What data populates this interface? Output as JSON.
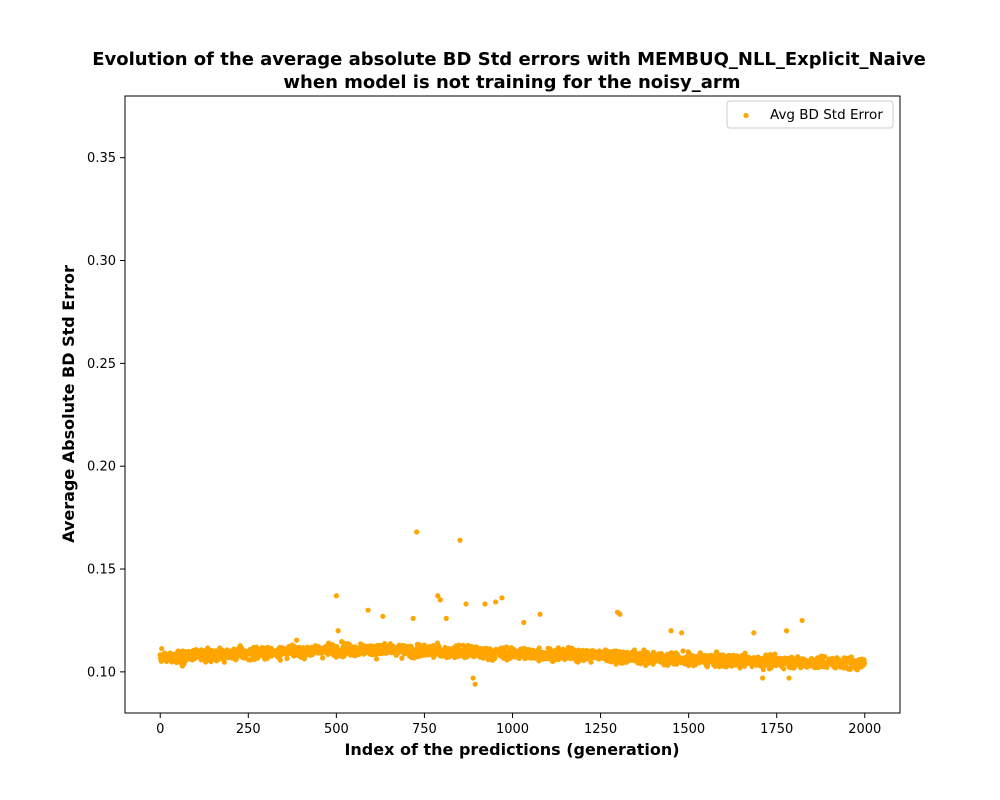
{
  "chart_data": {
    "type": "scatter",
    "title_line1": "Evolution of the average absolute BD Std errors with MEMBUQ_NLL_Explicit_Naive",
    "title_line2": "when model is not training for the noisy_arm",
    "xlabel": "Index of the predictions (generation)",
    "ylabel": "Average Absolute BD Std Error",
    "xlim": [
      -100,
      2100
    ],
    "ylim": [
      0.08,
      0.38
    ],
    "x_ticks": [
      0,
      250,
      500,
      750,
      1000,
      1250,
      1500,
      1750,
      2000
    ],
    "y_ticks": [
      0.1,
      0.15,
      0.2,
      0.25,
      0.3,
      0.35
    ],
    "x_tick_labels": [
      "0",
      "250",
      "500",
      "750",
      "1000",
      "1250",
      "1500",
      "1750",
      "2000"
    ],
    "y_tick_labels": [
      "0.10",
      "0.15",
      "0.20",
      "0.25",
      "0.30",
      "0.35"
    ],
    "grid": false,
    "legend_position": "upper right",
    "series": [
      {
        "name": "Avg BD Std Error",
        "color": "#FFA500",
        "marker": "circle",
        "n_points": 2000,
        "x_range": [
          0,
          1999
        ],
        "typical_band": [
          0.1,
          0.117
        ],
        "center_trend": [
          [
            0,
            0.107
          ],
          [
            500,
            0.111
          ],
          [
            750,
            0.11
          ],
          [
            1000,
            0.109
          ],
          [
            1250,
            0.108
          ],
          [
            1500,
            0.106
          ],
          [
            1750,
            0.105
          ],
          [
            2000,
            0.104
          ]
        ],
        "outliers": [
          [
            728,
            0.168
          ],
          [
            851,
            0.164
          ],
          [
            500,
            0.137
          ],
          [
            788,
            0.137
          ],
          [
            795,
            0.135
          ],
          [
            970,
            0.136
          ],
          [
            952,
            0.134
          ],
          [
            922,
            0.133
          ],
          [
            868,
            0.133
          ],
          [
            590,
            0.13
          ],
          [
            1298,
            0.129
          ],
          [
            1305,
            0.128
          ],
          [
            1078,
            0.128
          ],
          [
            1822,
            0.125
          ],
          [
            632,
            0.127
          ],
          [
            718,
            0.126
          ],
          [
            812,
            0.126
          ],
          [
            1032,
            0.124
          ],
          [
            1778,
            0.12
          ],
          [
            1685,
            0.119
          ],
          [
            1450,
            0.12
          ],
          [
            1480,
            0.119
          ],
          [
            505,
            0.12
          ],
          [
            888,
            0.097
          ],
          [
            894,
            0.094
          ],
          [
            1710,
            0.097
          ],
          [
            1785,
            0.097
          ]
        ]
      }
    ]
  }
}
